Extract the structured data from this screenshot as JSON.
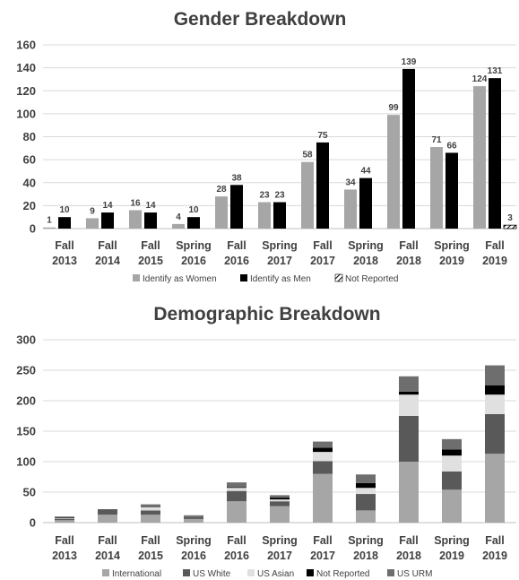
{
  "chart_data": [
    {
      "type": "bar",
      "title": "Gender Breakdown",
      "categories": [
        [
          "Fall",
          "2013"
        ],
        [
          "Fall",
          "2014"
        ],
        [
          "Fall",
          "2015"
        ],
        [
          "Spring",
          "2016"
        ],
        [
          "Fall",
          "2016"
        ],
        [
          "Spring",
          "2017"
        ],
        [
          "Fall",
          "2017"
        ],
        [
          "Spring",
          "2018"
        ],
        [
          "Fall",
          "2018"
        ],
        [
          "Spring",
          "2019"
        ],
        [
          "Fall",
          "2019"
        ]
      ],
      "ylim": [
        0,
        160
      ],
      "yticks": [
        0,
        20,
        40,
        60,
        80,
        100,
        120,
        140,
        160
      ],
      "grid": true,
      "legend_position": "bottom",
      "series": [
        {
          "name": "Identify as Women",
          "color": "#a6a6a6",
          "pattern": "solid",
          "values": [
            1,
            9,
            16,
            4,
            28,
            23,
            58,
            34,
            99,
            71,
            124
          ]
        },
        {
          "name": "Identify as Men",
          "color": "#000000",
          "pattern": "solid",
          "values": [
            10,
            14,
            14,
            10,
            38,
            23,
            75,
            44,
            139,
            66,
            131
          ]
        },
        {
          "name": "Not Reported",
          "color": "#000000",
          "pattern": "hatch",
          "values": [
            0,
            0,
            0,
            0,
            0,
            0,
            0,
            0,
            0,
            0,
            3
          ]
        }
      ],
      "data_labels": [
        [
          "1",
          "9",
          "16",
          "4",
          "28",
          "23",
          "58",
          "34",
          "99",
          "71",
          "124"
        ],
        [
          "10",
          "14",
          "14",
          "10",
          "38",
          "23",
          "75",
          "44",
          "139",
          "66",
          "131"
        ],
        [
          "",
          "",
          "",
          "",
          "",
          "",
          "",
          "",
          "",
          "",
          "3"
        ]
      ]
    },
    {
      "type": "bar",
      "stacked": true,
      "title": "Demographic Breakdown",
      "categories": [
        [
          "Fall",
          "2013"
        ],
        [
          "Fall",
          "2014"
        ],
        [
          "Fall",
          "2015"
        ],
        [
          "Spring",
          "2016"
        ],
        [
          "Fall",
          "2016"
        ],
        [
          "Spring",
          "2017"
        ],
        [
          "Fall",
          "2017"
        ],
        [
          "Spring",
          "2018"
        ],
        [
          "Fall",
          "2018"
        ],
        [
          "Spring",
          "2019"
        ],
        [
          "Fall",
          "2019"
        ]
      ],
      "ylim": [
        0,
        300
      ],
      "yticks": [
        0,
        50,
        100,
        150,
        200,
        250,
        300
      ],
      "grid": true,
      "legend_position": "bottom",
      "series": [
        {
          "name": "International",
          "color": "#a6a6a6",
          "values": [
            4,
            13,
            13,
            6,
            35,
            27,
            80,
            20,
            100,
            54,
            113
          ]
        },
        {
          "name": "US White",
          "color": "#595959",
          "values": [
            2,
            9,
            7,
            3,
            17,
            8,
            21,
            27,
            75,
            30,
            65
          ]
        },
        {
          "name": "US Asian",
          "color": "#e0e0e0",
          "values": [
            1,
            0,
            5,
            0,
            5,
            3,
            15,
            10,
            35,
            26,
            32
          ]
        },
        {
          "name": "Not Reported",
          "color": "#000000",
          "values": [
            1,
            0,
            0,
            0,
            1,
            3,
            7,
            8,
            5,
            10,
            15
          ]
        },
        {
          "name": "US URM",
          "color": "#6e6e6e",
          "values": [
            2,
            0,
            5,
            3,
            8,
            4,
            10,
            14,
            25,
            17,
            33
          ]
        }
      ]
    }
  ]
}
